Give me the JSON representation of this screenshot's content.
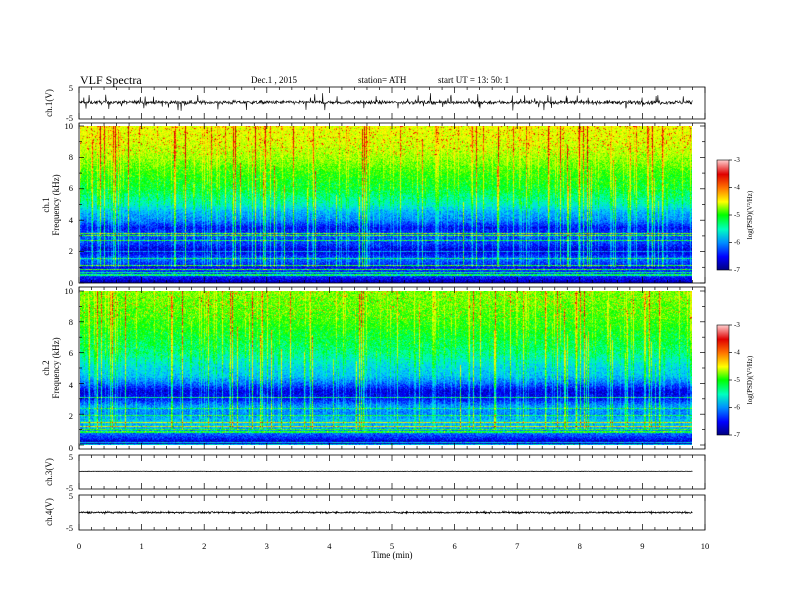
{
  "header": {
    "title": "VLF  Spectra",
    "date": "Dec.1  , 2015",
    "station": "station= ATH",
    "start": "start  UT =   13: 50: 1"
  },
  "colors": {
    "spectral_ramp": [
      "#000090",
      "#0000ff",
      "#0070ff",
      "#00c8ff",
      "#00ffb0",
      "#00ff00",
      "#a8ff00",
      "#ffff00",
      "#ffa000",
      "#ff2000",
      "#c80000"
    ],
    "colorbar_ramp": [
      "#000080",
      "#0000ff",
      "#0090ff",
      "#00ffc0",
      "#00ff00",
      "#ffff00",
      "#ff7000",
      "#e00000",
      "#ffd0d0"
    ]
  },
  "chart_data": [
    {
      "type": "line",
      "panel": "ch1",
      "ylabel": "ch.1(V)",
      "y_ticks": [
        "5",
        "-5"
      ],
      "xlim": [
        0,
        10
      ],
      "ylim": [
        -5,
        5
      ],
      "data_end_min": 9.8,
      "baseline_v": 0.2,
      "noise_v": 0.6,
      "spike_max_v": 2.5
    },
    {
      "type": "heatmap",
      "panel": "ch1",
      "ylabel_channel": "ch.1",
      "ylabel": "Frequency  (kHz)",
      "y_ticks": [
        "0",
        "2",
        "4",
        "6",
        "8",
        "10"
      ],
      "xlim": [
        0,
        10
      ],
      "ylim": [
        0,
        10
      ],
      "data_end_min": 9.8,
      "colorbar": {
        "label": "log(PSD)(V²/Hz)",
        "ticks": [
          "-3",
          "-4",
          "-5",
          "-6",
          "-7"
        ],
        "range": [
          -7,
          -3
        ]
      },
      "band_profile_khz_log_psd": [
        [
          0,
          -6.9
        ],
        [
          0.5,
          -6.3
        ],
        [
          1,
          -6.6
        ],
        [
          1.5,
          -6.2
        ],
        [
          2,
          -6.8
        ],
        [
          2.5,
          -6.4
        ],
        [
          3,
          -6.3
        ],
        [
          3.5,
          -6.6
        ],
        [
          4,
          -6.1
        ],
        [
          4.5,
          -5.9
        ],
        [
          5,
          -5.5
        ],
        [
          6,
          -5.1
        ],
        [
          7,
          -4.9
        ],
        [
          8,
          -4.6
        ],
        [
          9,
          -4.4
        ],
        [
          10,
          -4.3
        ]
      ]
    },
    {
      "type": "heatmap",
      "panel": "ch2",
      "ylabel_channel": "ch.2",
      "ylabel": "Frequency  (kHz)",
      "y_ticks": [
        "0",
        "2",
        "4",
        "6",
        "8",
        "10"
      ],
      "xlim": [
        0,
        10
      ],
      "ylim": [
        0,
        10
      ],
      "data_end_min": 9.8,
      "colorbar": {
        "label": "log(PSD)(V²/Hz)",
        "ticks": [
          "-3",
          "-4",
          "-5",
          "-6",
          "-7"
        ],
        "range": [
          -7,
          -3
        ]
      },
      "band_profile_khz_log_psd": [
        [
          0,
          -7.0
        ],
        [
          0.5,
          -6.4
        ],
        [
          1,
          -6.0
        ],
        [
          1.5,
          -5.8
        ],
        [
          2,
          -6.1
        ],
        [
          2.5,
          -6.0
        ],
        [
          3,
          -6.6
        ],
        [
          3.5,
          -6.7
        ],
        [
          4,
          -6.2
        ],
        [
          4.5,
          -5.8
        ],
        [
          5,
          -5.7
        ],
        [
          6,
          -5.3
        ],
        [
          7,
          -5.1
        ],
        [
          8,
          -4.9
        ],
        [
          9,
          -4.8
        ],
        [
          10,
          -4.7
        ]
      ]
    },
    {
      "type": "line",
      "panel": "ch3",
      "ylabel": "ch.3(V)",
      "y_ticks": [
        "5",
        "-5"
      ],
      "xlim": [
        0,
        10
      ],
      "ylim": [
        -5,
        5
      ],
      "data_end_min": 9.8,
      "baseline_v": 0.2,
      "noise_v": 0.05
    },
    {
      "type": "line",
      "panel": "ch4",
      "ylabel": "ch.4(V)",
      "y_ticks": [
        "5",
        "-5"
      ],
      "xlim": [
        0,
        10
      ],
      "ylim": [
        -5,
        5
      ],
      "data_end_min": 9.8,
      "baseline_v": 0.0,
      "noise_v": 0.25
    }
  ],
  "x_axis": {
    "label": "Time  (min)",
    "ticks": [
      "0",
      "1",
      "2",
      "3",
      "4",
      "5",
      "6",
      "7",
      "8",
      "9",
      "10"
    ],
    "range": [
      0,
      10
    ]
  }
}
